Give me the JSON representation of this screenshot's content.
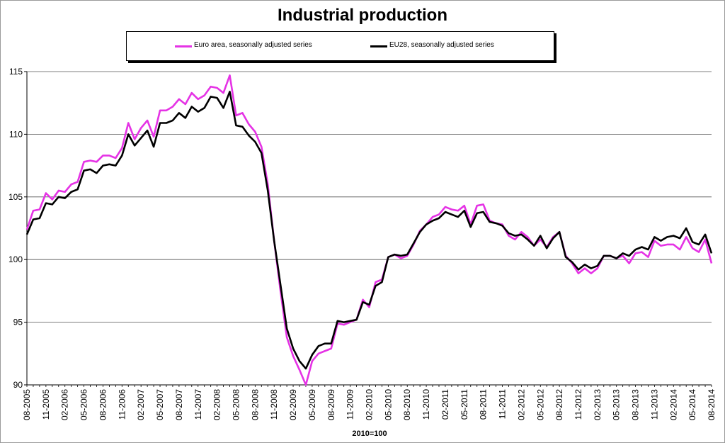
{
  "chart_data": {
    "type": "line",
    "title": "Industrial production",
    "xlabel": "2010=100",
    "ylabel": "",
    "ylim": [
      90,
      115
    ],
    "yticks": [
      90,
      95,
      100,
      105,
      110,
      115
    ],
    "grid": true,
    "legend_position": "top",
    "x": [
      "08-2005",
      "09-2005",
      "10-2005",
      "11-2005",
      "12-2005",
      "01-2006",
      "02-2006",
      "03-2006",
      "04-2006",
      "05-2006",
      "06-2006",
      "07-2006",
      "08-2006",
      "09-2006",
      "10-2006",
      "11-2006",
      "12-2006",
      "01-2007",
      "02-2007",
      "03-2007",
      "04-2007",
      "05-2007",
      "06-2007",
      "07-2007",
      "08-2007",
      "09-2007",
      "10-2007",
      "11-2007",
      "12-2007",
      "01-2008",
      "02-2008",
      "03-2008",
      "04-2008",
      "05-2008",
      "06-2008",
      "07-2008",
      "08-2008",
      "09-2008",
      "10-2008",
      "11-2008",
      "12-2008",
      "01-2009",
      "02-2009",
      "03-2009",
      "04-2009",
      "05-2009",
      "06-2009",
      "07-2009",
      "08-2009",
      "09-2009",
      "10-2009",
      "11-2009",
      "12-2009",
      "01-2010",
      "02-2010",
      "03-2010",
      "04-2010",
      "05-2010",
      "06-2010",
      "07-2010",
      "08-2010",
      "09-2010",
      "10-2010",
      "11-2010",
      "12-2010",
      "01-2011",
      "02-2011",
      "03-2011",
      "04-2011",
      "05-2011",
      "06-2011",
      "07-2011",
      "08-2011",
      "09-2011",
      "10-2011",
      "11-2011",
      "12-2011",
      "01-2012",
      "02-2012",
      "03-2012",
      "04-2012",
      "05-2012",
      "06-2012",
      "07-2012",
      "08-2012",
      "09-2012",
      "10-2012",
      "11-2012",
      "12-2012",
      "01-2013",
      "02-2013",
      "03-2013",
      "04-2013",
      "05-2013",
      "06-2013",
      "07-2013",
      "08-2013",
      "09-2013",
      "10-2013",
      "11-2013",
      "12-2013",
      "01-2014",
      "02-2014",
      "03-2014",
      "04-2014",
      "05-2014",
      "06-2014",
      "07-2014",
      "08-2014"
    ],
    "xtick_labels": [
      "08-2005",
      "11-2005",
      "02-2006",
      "05-2006",
      "08-2006",
      "11-2006",
      "02-2007",
      "05-2007",
      "08-2007",
      "11-2007",
      "02-2008",
      "05-2008",
      "08-2008",
      "11-2008",
      "02-2009",
      "05-2009",
      "08-2009",
      "11-2009",
      "02-2010",
      "05-2010",
      "08-2010",
      "11-2010",
      "02-2011",
      "05-2011",
      "08-2011",
      "11-2011",
      "02-2012",
      "05-2012",
      "08-2012",
      "11-2012",
      "02-2013",
      "05-2013",
      "08-2013",
      "11-2013",
      "02-2014",
      "05-2014",
      "08-2014"
    ],
    "series": [
      {
        "name": "Euro area, seasonally adjusted series",
        "color": "#e533e5",
        "values": [
          102.4,
          103.9,
          104.0,
          105.3,
          104.8,
          105.5,
          105.4,
          106.0,
          106.2,
          107.8,
          107.9,
          107.8,
          108.3,
          108.3,
          108.1,
          108.9,
          110.9,
          109.6,
          110.5,
          111.1,
          109.8,
          111.9,
          111.9,
          112.2,
          112.8,
          112.4,
          113.3,
          112.8,
          113.1,
          113.8,
          113.7,
          113.3,
          114.7,
          111.5,
          111.7,
          110.8,
          110.2,
          109.0,
          106.0,
          101.5,
          97.5,
          93.8,
          92.3,
          91.2,
          90.0,
          91.9,
          92.5,
          92.7,
          92.9,
          94.9,
          94.8,
          95.0,
          95.2,
          96.8,
          96.2,
          98.2,
          98.4,
          100.2,
          100.4,
          100.1,
          100.3,
          101.2,
          102.3,
          102.8,
          103.4,
          103.6,
          104.2,
          104.0,
          103.9,
          104.3,
          102.8,
          104.3,
          104.4,
          103.1,
          102.9,
          102.8,
          101.9,
          101.6,
          102.2,
          101.8,
          101.1,
          101.6,
          101.0,
          101.8,
          102.2,
          100.3,
          99.7,
          98.9,
          99.3,
          98.9,
          99.3,
          100.3,
          100.3,
          100.1,
          100.3,
          99.7,
          100.5,
          100.6,
          100.2,
          101.5,
          101.1,
          101.2,
          101.2,
          100.8,
          101.8,
          100.9,
          100.6,
          101.6,
          99.7
        ]
      },
      {
        "name": "EU28, seasonally adjusted series",
        "color": "#000000",
        "values": [
          102.0,
          103.2,
          103.3,
          104.5,
          104.4,
          105.0,
          104.9,
          105.4,
          105.6,
          107.1,
          107.2,
          106.9,
          107.5,
          107.6,
          107.5,
          108.3,
          110.0,
          109.1,
          109.7,
          110.3,
          109.0,
          110.9,
          110.9,
          111.1,
          111.7,
          111.3,
          112.2,
          111.8,
          112.1,
          113.0,
          112.9,
          112.1,
          113.4,
          110.7,
          110.6,
          109.9,
          109.4,
          108.5,
          105.5,
          101.5,
          98.0,
          94.5,
          92.9,
          91.9,
          91.3,
          92.4,
          93.1,
          93.3,
          93.3,
          95.1,
          95.0,
          95.1,
          95.2,
          96.6,
          96.4,
          97.9,
          98.2,
          100.2,
          100.4,
          100.3,
          100.4,
          101.3,
          102.2,
          102.8,
          103.1,
          103.3,
          103.8,
          103.6,
          103.4,
          103.9,
          102.6,
          103.7,
          103.8,
          103.0,
          102.9,
          102.7,
          102.1,
          101.9,
          102.0,
          101.6,
          101.1,
          101.9,
          100.9,
          101.7,
          102.2,
          100.2,
          99.8,
          99.2,
          99.6,
          99.3,
          99.5,
          100.3,
          100.3,
          100.1,
          100.5,
          100.3,
          100.8,
          101.0,
          100.8,
          101.8,
          101.5,
          101.8,
          101.9,
          101.7,
          102.5,
          101.4,
          101.2,
          102.0,
          100.5
        ]
      }
    ]
  }
}
